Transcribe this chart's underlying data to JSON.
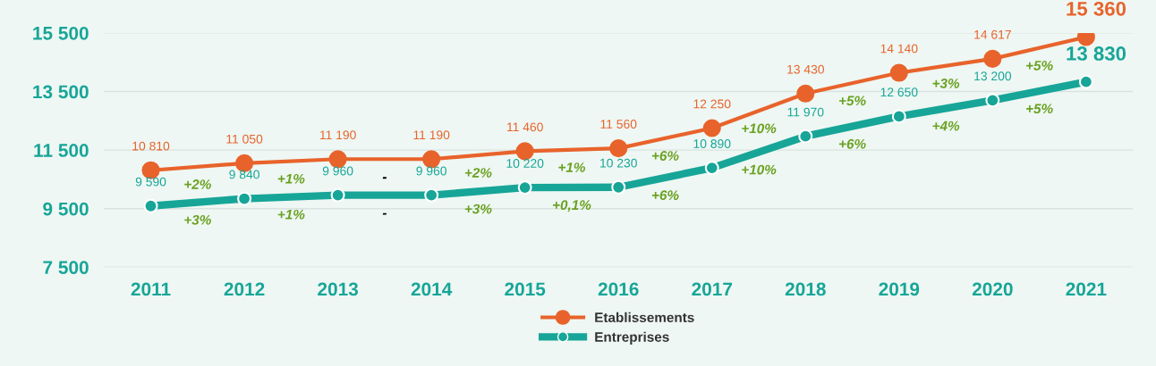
{
  "chart_data": {
    "type": "line",
    "categories": [
      "2011",
      "2012",
      "2013",
      "2014",
      "2015",
      "2016",
      "2017",
      "2018",
      "2019",
      "2020",
      "2021"
    ],
    "series": [
      {
        "name": "Etablissements",
        "color": "#e8632b",
        "values": [
          10810,
          11050,
          11190,
          11190,
          11460,
          11560,
          12250,
          13430,
          14140,
          14617,
          15360
        ],
        "value_labels": [
          "10 810",
          "11 050",
          "11 190",
          "11 190",
          "11 460",
          "11 560",
          "12 250",
          "13 430",
          "14 140",
          "14 617",
          "15 360"
        ]
      },
      {
        "name": "Entreprises",
        "color": "#17a598",
        "values": [
          9590,
          9840,
          9960,
          9960,
          10220,
          10230,
          10890,
          11970,
          12650,
          13200,
          13830
        ],
        "value_labels": [
          "9 590",
          "9 840",
          "9 960",
          "9 960",
          "10 220",
          "10 230",
          "10 890",
          "11 970",
          "12 650",
          "13 200",
          "13 830"
        ]
      }
    ],
    "annotations": [
      "+2%",
      "+1%",
      "-",
      "+2%",
      "+1%",
      "+6%",
      "+10%",
      "+5%",
      "+3%",
      "+5%",
      "+3%",
      "+1%",
      "-",
      "+3%",
      "+0,1%",
      "+6%",
      "+10%",
      "+6%",
      "+4%",
      "+5%"
    ],
    "ylim": [
      7500,
      15500
    ],
    "yticks": [
      {
        "value": 7500,
        "label": "7 500"
      },
      {
        "value": 9500,
        "label": "9 500"
      },
      {
        "value": 11500,
        "label": "11 500"
      },
      {
        "value": 13500,
        "label": "13 500"
      },
      {
        "value": 15500,
        "label": "15 500"
      }
    ],
    "grid": "y",
    "legend": "bottom",
    "marker": "circle",
    "line_style": "solid"
  }
}
